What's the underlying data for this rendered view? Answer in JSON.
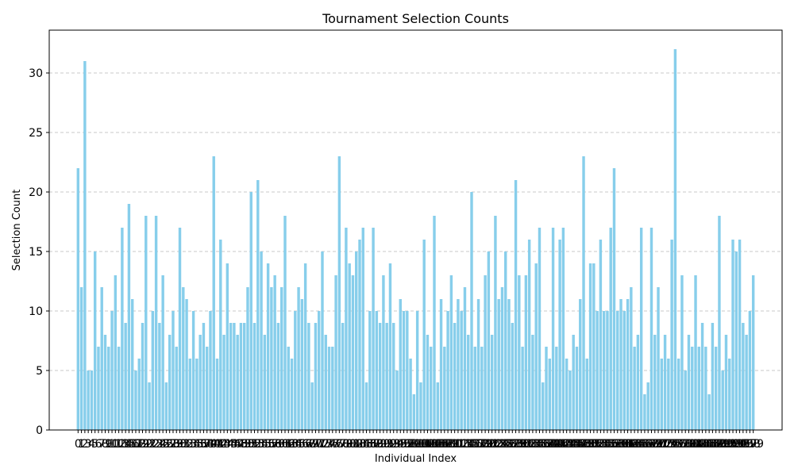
{
  "chart_data": {
    "type": "bar",
    "title": "Tournament Selection Counts",
    "xlabel": "Individual Index",
    "ylabel": "Selection Count",
    "ylim": [
      0,
      33.6
    ],
    "yticks": [
      0,
      5,
      10,
      15,
      20,
      25,
      30
    ],
    "grid": "y-dashed",
    "bar_color": "#87ceeb",
    "categories": [
      0,
      1,
      2,
      3,
      4,
      5,
      6,
      7,
      8,
      9,
      10,
      11,
      12,
      13,
      14,
      15,
      16,
      17,
      18,
      19,
      20,
      21,
      22,
      23,
      24,
      25,
      26,
      27,
      28,
      29,
      30,
      31,
      32,
      33,
      34,
      35,
      36,
      37,
      38,
      39,
      40,
      41,
      42,
      43,
      44,
      45,
      46,
      47,
      48,
      49,
      50,
      51,
      52,
      53,
      54,
      55,
      56,
      57,
      58,
      59,
      60,
      61,
      62,
      63,
      64,
      65,
      66,
      67,
      68,
      69,
      70,
      71,
      72,
      73,
      74,
      75,
      76,
      77,
      78,
      79,
      80,
      81,
      82,
      83,
      84,
      85,
      86,
      87,
      88,
      89,
      90,
      91,
      92,
      93,
      94,
      95,
      96,
      97,
      98,
      99,
      100,
      101,
      102,
      103,
      104,
      105,
      106,
      107,
      108,
      109,
      110,
      111,
      112,
      113,
      114,
      115,
      116,
      117,
      118,
      119,
      120,
      121,
      122,
      123,
      124,
      125,
      126,
      127,
      128,
      129,
      130,
      131,
      132,
      133,
      134,
      135,
      136,
      137,
      138,
      139,
      140,
      141,
      142,
      143,
      144,
      145,
      146,
      147,
      148,
      149,
      150,
      151,
      152,
      153,
      154,
      155,
      156,
      157,
      158,
      159,
      160,
      161,
      162,
      163,
      164,
      165,
      166,
      167,
      168,
      169,
      170,
      171,
      172,
      173,
      174,
      175,
      176,
      177,
      178,
      179,
      180,
      181,
      182,
      183,
      184,
      185,
      186,
      187,
      188,
      189,
      190,
      191,
      192,
      193,
      194,
      195,
      196,
      197,
      198,
      199
    ],
    "values": [
      22,
      12,
      31,
      5,
      5,
      15,
      7,
      12,
      8,
      7,
      10,
      13,
      7,
      17,
      9,
      19,
      11,
      5,
      6,
      9,
      18,
      4,
      10,
      18,
      9,
      13,
      4,
      8,
      10,
      7,
      17,
      12,
      11,
      6,
      10,
      6,
      8,
      9,
      7,
      10,
      23,
      6,
      16,
      8,
      14,
      9,
      9,
      8,
      9,
      9,
      12,
      20,
      9,
      21,
      15,
      8,
      14,
      12,
      13,
      9,
      12,
      18,
      7,
      6,
      10,
      12,
      11,
      14,
      9,
      4,
      9,
      10,
      15,
      8,
      7,
      7,
      13,
      23,
      9,
      17,
      14,
      13,
      15,
      16,
      17,
      4,
      10,
      17,
      10,
      9,
      13,
      9,
      14,
      9,
      5,
      11,
      10,
      10,
      6,
      3,
      10,
      4,
      16,
      8,
      7,
      18,
      4,
      11,
      7,
      10,
      13,
      9,
      11,
      10,
      12,
      8,
      20,
      7,
      11,
      7,
      13,
      15,
      8,
      18,
      11,
      12,
      15,
      11,
      9,
      21,
      13,
      7,
      13,
      16,
      8,
      14,
      17,
      4,
      7,
      6,
      17,
      7,
      16,
      17,
      6,
      5,
      8,
      7,
      11,
      23,
      6,
      14,
      14,
      10,
      16,
      10,
      10,
      17,
      22,
      10,
      11,
      10,
      11,
      12,
      7,
      8,
      17,
      3,
      4,
      17,
      8,
      12,
      6,
      8,
      6,
      16,
      32,
      6,
      13,
      5,
      8,
      7,
      13,
      7,
      9,
      7,
      3,
      9,
      7,
      18,
      5,
      8,
      6,
      16,
      15,
      16,
      9,
      8,
      10,
      13
    ]
  }
}
